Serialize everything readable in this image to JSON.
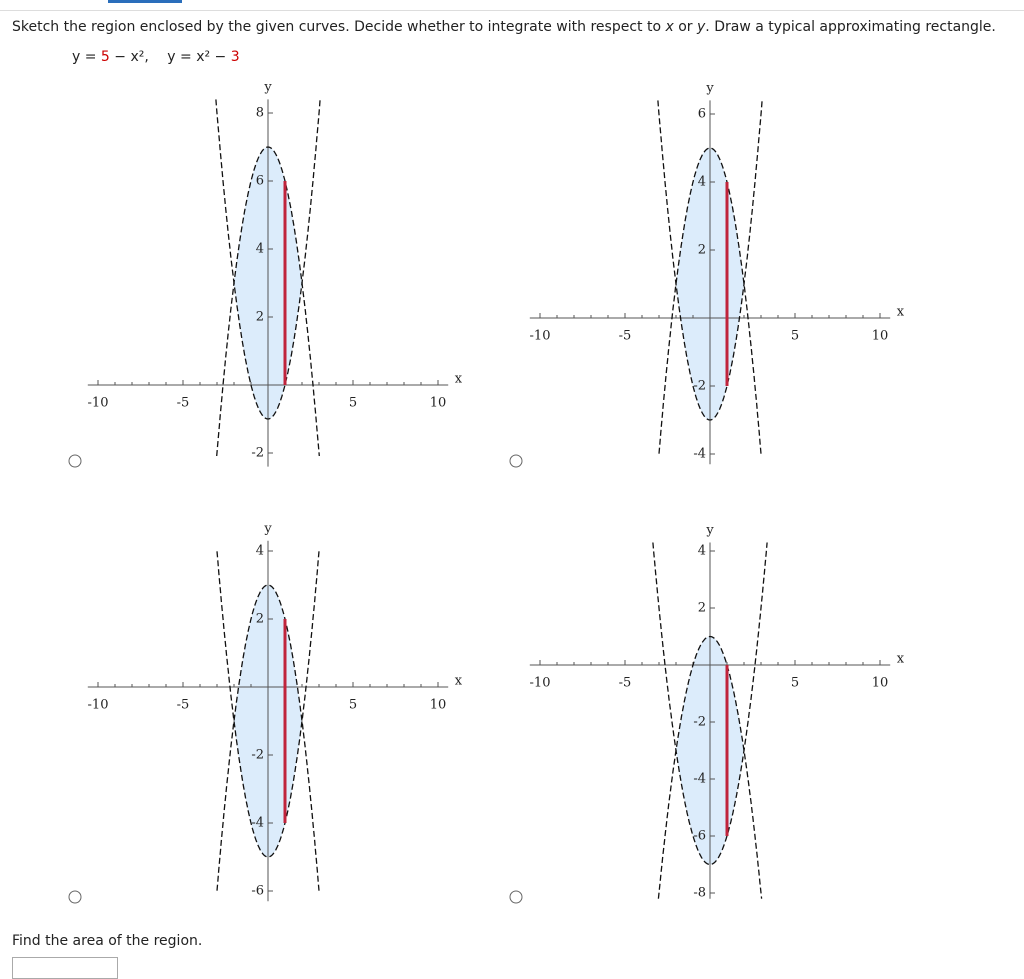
{
  "question": {
    "parts": [
      "Sketch the region enclosed by the given curves. Decide whether to integrate with respect to ",
      "x",
      " or ",
      "y",
      ". Draw a typical approximating rectangle."
    ]
  },
  "equation": {
    "parts": [
      "y = ",
      "5",
      " − x², ",
      "y = x² − ",
      "3"
    ]
  },
  "options": [
    {
      "x_label": "x",
      "y_label": "y",
      "xticks": [
        -10,
        -5,
        5,
        10
      ],
      "yticks": [
        -2,
        2,
        4,
        6,
        8
      ]
    },
    {
      "x_label": "x",
      "y_label": "y",
      "xticks": [
        -10,
        -5,
        5,
        10
      ],
      "yticks": [
        -4,
        -2,
        2,
        4,
        6
      ]
    },
    {
      "x_label": "x",
      "y_label": "y",
      "xticks": [
        -10,
        -5,
        5,
        10
      ],
      "yticks": [
        -6,
        -4,
        -2,
        2,
        4
      ]
    },
    {
      "x_label": "x",
      "y_label": "y",
      "xticks": [
        -10,
        -5,
        5,
        10
      ],
      "yticks": [
        -8,
        -6,
        -4,
        -2,
        2,
        4
      ]
    }
  ],
  "prompt": "Find the area of the region."
}
